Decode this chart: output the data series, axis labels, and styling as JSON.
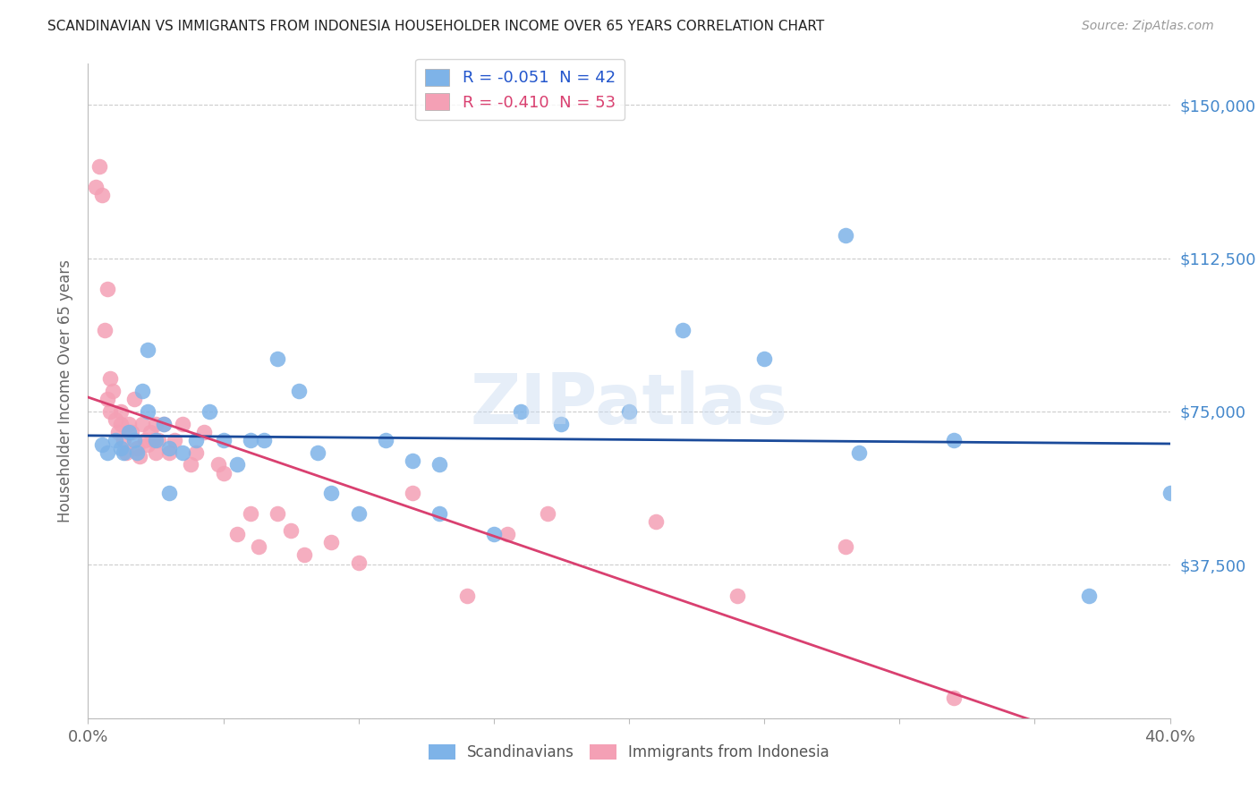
{
  "title": "SCANDINAVIAN VS IMMIGRANTS FROM INDONESIA HOUSEHOLDER INCOME OVER 65 YEARS CORRELATION CHART",
  "source": "Source: ZipAtlas.com",
  "ylabel": "Householder Income Over 65 years",
  "xlim": [
    0.0,
    0.4
  ],
  "ylim": [
    0,
    160000
  ],
  "yticks": [
    0,
    37500,
    75000,
    112500,
    150000
  ],
  "ytick_labels": [
    "",
    "$37,500",
    "$75,000",
    "$112,500",
    "$150,000"
  ],
  "xticks": [
    0.0,
    0.05,
    0.1,
    0.15,
    0.2,
    0.25,
    0.3,
    0.35,
    0.4
  ],
  "xtick_labels": [
    "0.0%",
    "",
    "",
    "",
    "",
    "",
    "",
    "",
    "40.0%"
  ],
  "watermark": "ZIPatlas",
  "scandinavian_color": "#7EB3E8",
  "indonesia_color": "#F4A0B5",
  "line_scandinavian_color": "#1A4A9A",
  "line_indonesia_color": "#D94070",
  "background_color": "#FFFFFF",
  "grid_color": "#CCCCCC",
  "title_color": "#222222",
  "ytick_color": "#4488CC",
  "xtick_color": "#666666",
  "legend_R_text_color_1": "#2255CC",
  "legend_R_text_color_2": "#D94070",
  "scandinavian_x": [
    0.005,
    0.007,
    0.01,
    0.012,
    0.013,
    0.015,
    0.017,
    0.018,
    0.02,
    0.022,
    0.025,
    0.028,
    0.03,
    0.035,
    0.04,
    0.045,
    0.05,
    0.055,
    0.06,
    0.065,
    0.07,
    0.078,
    0.085,
    0.09,
    0.1,
    0.11,
    0.12,
    0.13,
    0.15,
    0.16,
    0.175,
    0.2,
    0.22,
    0.25,
    0.285,
    0.32,
    0.37,
    0.4,
    0.022,
    0.03,
    0.13,
    0.28
  ],
  "scandinavian_y": [
    67000,
    65000,
    68000,
    66000,
    65000,
    70000,
    68000,
    65000,
    80000,
    75000,
    68000,
    72000,
    66000,
    65000,
    68000,
    75000,
    68000,
    62000,
    68000,
    68000,
    88000,
    80000,
    65000,
    55000,
    50000,
    68000,
    63000,
    62000,
    45000,
    75000,
    72000,
    75000,
    95000,
    88000,
    65000,
    68000,
    30000,
    55000,
    90000,
    55000,
    50000,
    118000
  ],
  "indonesia_x": [
    0.003,
    0.004,
    0.005,
    0.006,
    0.007,
    0.007,
    0.008,
    0.008,
    0.009,
    0.01,
    0.011,
    0.012,
    0.012,
    0.013,
    0.014,
    0.015,
    0.016,
    0.017,
    0.018,
    0.019,
    0.02,
    0.021,
    0.022,
    0.023,
    0.024,
    0.025,
    0.025,
    0.026,
    0.028,
    0.03,
    0.032,
    0.035,
    0.038,
    0.04,
    0.043,
    0.048,
    0.05,
    0.055,
    0.06,
    0.063,
    0.07,
    0.075,
    0.08,
    0.09,
    0.1,
    0.12,
    0.14,
    0.155,
    0.17,
    0.21,
    0.24,
    0.28,
    0.32
  ],
  "indonesia_y": [
    130000,
    135000,
    128000,
    95000,
    105000,
    78000,
    83000,
    75000,
    80000,
    73000,
    70000,
    72000,
    75000,
    68000,
    65000,
    72000,
    70000,
    78000,
    66000,
    64000,
    72000,
    68000,
    67000,
    70000,
    68000,
    65000,
    72000,
    68000,
    72000,
    65000,
    68000,
    72000,
    62000,
    65000,
    70000,
    62000,
    60000,
    45000,
    50000,
    42000,
    50000,
    46000,
    40000,
    43000,
    38000,
    55000,
    30000,
    45000,
    50000,
    48000,
    30000,
    42000,
    5000
  ]
}
